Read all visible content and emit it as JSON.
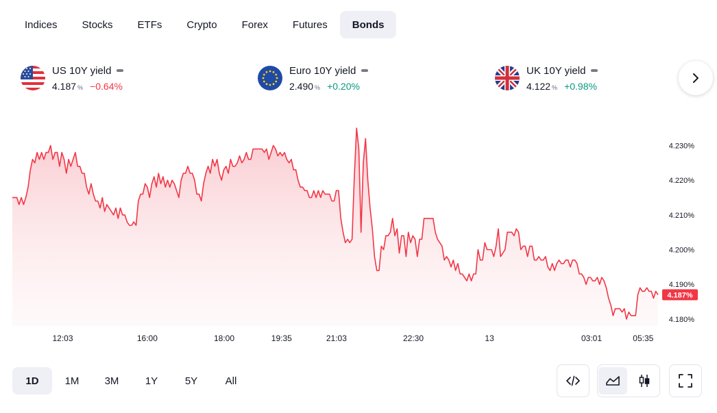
{
  "tabs": [
    {
      "label": "Indices",
      "active": false
    },
    {
      "label": "Stocks",
      "active": false
    },
    {
      "label": "ETFs",
      "active": false
    },
    {
      "label": "Crypto",
      "active": false
    },
    {
      "label": "Forex",
      "active": false
    },
    {
      "label": "Futures",
      "active": false
    },
    {
      "label": "Bonds",
      "active": true
    }
  ],
  "cards": [
    {
      "name": "US 10Y yield",
      "value": "4.187",
      "unit": "%",
      "change": "−0.64%",
      "direction": "down",
      "flag": "us-flag-icon",
      "active": true
    },
    {
      "name": "Euro 10Y yield",
      "value": "2.490",
      "unit": "%",
      "change": "+0.20%",
      "direction": "up",
      "flag": "eu-flag-icon",
      "active": false
    },
    {
      "name": "UK 10Y yield",
      "value": "4.122",
      "unit": "%",
      "change": "+0.98%",
      "direction": "up",
      "flag": "uk-flag-icon",
      "active": false
    }
  ],
  "ranges": [
    {
      "label": "1D",
      "active": true
    },
    {
      "label": "1M",
      "active": false
    },
    {
      "label": "3M",
      "active": false
    },
    {
      "label": "1Y",
      "active": false
    },
    {
      "label": "5Y",
      "active": false
    },
    {
      "label": "All",
      "active": false
    }
  ],
  "colors": {
    "line": "#f23645",
    "fill_top": "#f7c6cb",
    "neg": "#f23645",
    "pos": "#089981",
    "active_bg": "#eef0f6"
  },
  "chart_data": {
    "type": "area",
    "title": "",
    "xlabel": "",
    "ylabel": "",
    "ylim": [
      4.178,
      4.236
    ],
    "y_ticks": [
      "4.180%",
      "4.190%",
      "4.200%",
      "4.210%",
      "4.220%",
      "4.230%"
    ],
    "y_tick_values": [
      4.18,
      4.19,
      4.2,
      4.21,
      4.22,
      4.23
    ],
    "x_ticks": [
      "12:03",
      "16:00",
      "18:00",
      "19:35",
      "21:03",
      "22:30",
      "13",
      "03:01",
      "05:35"
    ],
    "last_value_label": "4.187%",
    "last_value": 4.187,
    "series": [
      {
        "values": [
          4.215,
          4.215,
          4.215,
          4.213,
          4.215,
          4.213,
          4.215,
          4.218,
          4.223,
          4.226,
          4.225,
          4.228,
          4.226,
          4.228,
          4.226,
          4.228,
          4.228,
          4.23,
          4.226,
          4.228,
          4.228,
          4.224,
          4.228,
          4.226,
          4.222,
          4.226,
          4.224,
          4.226,
          4.228,
          4.224,
          4.224,
          4.222,
          4.222,
          4.218,
          4.216,
          4.219,
          4.216,
          4.214,
          4.214,
          4.212,
          4.215,
          4.211,
          4.213,
          4.212,
          4.211,
          4.21,
          4.212,
          4.209,
          4.212,
          4.21,
          4.21,
          4.208,
          4.207,
          4.207,
          4.208,
          4.207,
          4.214,
          4.216,
          4.216,
          4.219,
          4.218,
          4.215,
          4.219,
          4.221,
          4.218,
          4.222,
          4.219,
          4.221,
          4.218,
          4.22,
          4.218,
          4.22,
          4.219,
          4.217,
          4.215,
          4.22,
          4.222,
          4.222,
          4.224,
          4.222,
          4.222,
          4.22,
          4.216,
          4.216,
          4.214,
          4.219,
          4.222,
          4.224,
          4.222,
          4.226,
          4.224,
          4.226,
          4.222,
          4.22,
          4.223,
          4.224,
          4.222,
          4.226,
          4.224,
          4.224,
          4.225,
          4.227,
          4.225,
          4.226,
          4.228,
          4.226,
          4.226,
          4.229,
          4.229,
          4.229,
          4.229,
          4.229,
          4.228,
          4.229,
          4.226,
          4.228,
          4.23,
          4.229,
          4.227,
          4.228,
          4.227,
          4.228,
          4.226,
          4.225,
          4.226,
          4.223,
          4.223,
          4.22,
          4.218,
          4.218,
          4.217,
          4.217,
          4.215,
          4.215,
          4.217,
          4.215,
          4.217,
          4.215,
          4.217,
          4.216,
          4.216,
          4.216,
          4.214,
          4.214,
          4.217,
          4.217,
          4.209,
          4.205,
          4.202,
          4.203,
          4.202,
          4.203,
          4.221,
          4.235,
          4.229,
          4.205,
          4.225,
          4.232,
          4.22,
          4.212,
          4.206,
          4.198,
          4.194,
          4.194,
          4.201,
          4.2,
          4.204,
          4.204,
          4.205,
          4.209,
          4.204,
          4.206,
          4.199,
          4.204,
          4.204,
          4.198,
          4.205,
          4.202,
          4.204,
          4.203,
          4.198,
          4.203,
          4.203,
          4.209,
          4.209,
          4.209,
          4.209,
          4.209,
          4.205,
          4.203,
          4.202,
          4.201,
          4.197,
          4.198,
          4.197,
          4.195,
          4.197,
          4.194,
          4.196,
          4.193,
          4.193,
          4.192,
          4.191,
          4.193,
          4.191,
          4.193,
          4.193,
          4.2,
          4.197,
          4.197,
          4.202,
          4.2,
          4.2,
          4.2,
          4.198,
          4.201,
          4.206,
          4.198,
          4.199,
          4.2,
          4.205,
          4.205,
          4.205,
          4.204,
          4.206,
          4.205,
          4.2,
          4.201,
          4.201,
          4.198,
          4.201,
          4.201,
          4.197,
          4.197,
          4.198,
          4.197,
          4.197,
          4.198,
          4.195,
          4.194,
          4.196,
          4.194,
          4.196,
          4.197,
          4.196,
          4.196,
          4.197,
          4.197,
          4.195,
          4.197,
          4.197,
          4.196,
          4.193,
          4.193,
          4.192,
          4.19,
          4.192,
          4.192,
          4.191,
          4.191,
          4.192,
          4.19,
          4.192,
          4.191,
          4.189,
          4.186,
          4.184,
          4.181,
          4.183,
          4.183,
          4.183,
          4.182,
          4.183,
          4.18,
          4.182,
          4.181,
          4.181,
          4.181,
          4.187,
          4.189,
          4.188,
          4.188,
          4.189,
          4.188,
          4.188,
          4.186,
          4.188,
          4.187
        ]
      }
    ],
    "grid": false,
    "legend": "none"
  }
}
